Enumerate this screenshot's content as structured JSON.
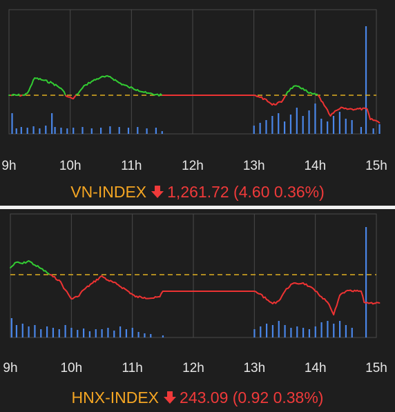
{
  "chart_data": [
    {
      "type": "line",
      "name": "VN-INDEX",
      "x_ticks": [
        "9h",
        "10h",
        "11h",
        "12h",
        "13h",
        "14h",
        "15h"
      ],
      "reference_line": "dashed",
      "price_path": [
        [
          9.0,
          0
        ],
        [
          9.25,
          0
        ],
        [
          9.3,
          -3
        ],
        [
          9.35,
          -12
        ],
        [
          9.42,
          -25
        ],
        [
          9.55,
          -22
        ],
        [
          9.7,
          -18
        ],
        [
          9.85,
          -10
        ],
        [
          9.95,
          2
        ],
        [
          10.05,
          5
        ],
        [
          10.15,
          -5
        ],
        [
          10.25,
          -15
        ],
        [
          10.35,
          -20
        ],
        [
          10.5,
          -26
        ],
        [
          10.65,
          -27
        ],
        [
          10.8,
          -18
        ],
        [
          10.95,
          -12
        ],
        [
          11.1,
          -8
        ],
        [
          11.25,
          -3
        ],
        [
          11.4,
          -1
        ],
        [
          11.5,
          0
        ],
        [
          13.0,
          0
        ],
        [
          13.1,
          3
        ],
        [
          13.2,
          6
        ],
        [
          13.3,
          14
        ],
        [
          13.45,
          10
        ],
        [
          13.55,
          -5
        ],
        [
          13.65,
          -13
        ],
        [
          13.8,
          -10
        ],
        [
          13.9,
          -3
        ],
        [
          14.05,
          0
        ],
        [
          14.15,
          15
        ],
        [
          14.25,
          30
        ],
        [
          14.35,
          22
        ],
        [
          14.45,
          18
        ],
        [
          14.55,
          20
        ],
        [
          14.6,
          20
        ],
        [
          14.85,
          20
        ],
        [
          14.9,
          35
        ],
        [
          15.0,
          37
        ],
        [
          15.05,
          40
        ]
      ],
      "volume": [
        [
          9.05,
          30
        ],
        [
          9.12,
          8
        ],
        [
          9.2,
          10
        ],
        [
          9.3,
          9
        ],
        [
          9.4,
          11
        ],
        [
          9.5,
          8
        ],
        [
          9.6,
          12
        ],
        [
          9.7,
          30
        ],
        [
          9.75,
          10
        ],
        [
          9.85,
          9
        ],
        [
          9.95,
          8
        ],
        [
          10.05,
          9
        ],
        [
          10.2,
          10
        ],
        [
          10.35,
          8
        ],
        [
          10.5,
          9
        ],
        [
          10.65,
          11
        ],
        [
          10.8,
          10
        ],
        [
          10.95,
          9
        ],
        [
          11.1,
          10
        ],
        [
          11.25,
          8
        ],
        [
          11.4,
          9
        ],
        [
          11.5,
          4
        ],
        [
          13.0,
          12
        ],
        [
          13.1,
          16
        ],
        [
          13.2,
          20
        ],
        [
          13.3,
          26
        ],
        [
          13.4,
          30
        ],
        [
          13.5,
          18
        ],
        [
          13.6,
          28
        ],
        [
          13.7,
          38
        ],
        [
          13.8,
          26
        ],
        [
          13.9,
          34
        ],
        [
          14.0,
          44
        ],
        [
          14.1,
          22
        ],
        [
          14.2,
          18
        ],
        [
          14.3,
          26
        ],
        [
          14.4,
          32
        ],
        [
          14.5,
          22
        ],
        [
          14.6,
          20
        ],
        [
          14.75,
          10
        ],
        [
          14.83,
          156
        ],
        [
          14.95,
          8
        ],
        [
          15.05,
          14
        ]
      ],
      "caption": {
        "name": "VN-INDEX",
        "value": "1,261.72 (4.60 0.36%)"
      },
      "colors": {
        "up": "#33cc33",
        "down": "#ee3333",
        "volume": "#4a86e8",
        "reference": "#e0b020"
      }
    },
    {
      "type": "line",
      "name": "HNX-INDEX",
      "x_ticks": [
        "9h",
        "10h",
        "11h",
        "12h",
        "13h",
        "14h",
        "15h"
      ],
      "reference_line": "dashed",
      "price_path": [
        [
          9.0,
          -10
        ],
        [
          9.1,
          -18
        ],
        [
          9.2,
          -16
        ],
        [
          9.3,
          -20
        ],
        [
          9.4,
          -14
        ],
        [
          9.5,
          -9
        ],
        [
          9.6,
          -3
        ],
        [
          9.7,
          3
        ],
        [
          9.8,
          8
        ],
        [
          9.9,
          22
        ],
        [
          10.0,
          35
        ],
        [
          10.1,
          32
        ],
        [
          10.2,
          22
        ],
        [
          10.35,
          12
        ],
        [
          10.5,
          2
        ],
        [
          10.6,
          8
        ],
        [
          10.75,
          14
        ],
        [
          10.9,
          22
        ],
        [
          11.05,
          32
        ],
        [
          11.2,
          33
        ],
        [
          11.35,
          34
        ],
        [
          11.45,
          32
        ],
        [
          11.5,
          24
        ],
        [
          13.0,
          24
        ],
        [
          13.1,
          28
        ],
        [
          13.2,
          36
        ],
        [
          13.3,
          42
        ],
        [
          13.4,
          38
        ],
        [
          13.5,
          24
        ],
        [
          13.6,
          14
        ],
        [
          13.7,
          13
        ],
        [
          13.8,
          12
        ],
        [
          13.9,
          17
        ],
        [
          14.0,
          24
        ],
        [
          14.1,
          32
        ],
        [
          14.2,
          40
        ],
        [
          14.3,
          58
        ],
        [
          14.35,
          45
        ],
        [
          14.4,
          30
        ],
        [
          14.5,
          24
        ],
        [
          14.6,
          24
        ],
        [
          14.75,
          24
        ],
        [
          14.8,
          40
        ],
        [
          14.9,
          41
        ],
        [
          15.05,
          41
        ]
      ],
      "volume": [
        [
          9.02,
          28
        ],
        [
          9.1,
          18
        ],
        [
          9.2,
          20
        ],
        [
          9.3,
          16
        ],
        [
          9.4,
          18
        ],
        [
          9.5,
          12
        ],
        [
          9.6,
          16
        ],
        [
          9.7,
          14
        ],
        [
          9.8,
          12
        ],
        [
          9.9,
          18
        ],
        [
          10.0,
          14
        ],
        [
          10.1,
          11
        ],
        [
          10.2,
          13
        ],
        [
          10.3,
          9
        ],
        [
          10.4,
          12
        ],
        [
          10.5,
          12
        ],
        [
          10.6,
          14
        ],
        [
          10.7,
          10
        ],
        [
          10.8,
          16
        ],
        [
          10.9,
          12
        ],
        [
          11.0,
          14
        ],
        [
          11.1,
          8
        ],
        [
          11.2,
          6
        ],
        [
          11.3,
          5
        ],
        [
          11.5,
          3
        ],
        [
          13.0,
          12
        ],
        [
          13.1,
          16
        ],
        [
          13.2,
          20
        ],
        [
          13.3,
          18
        ],
        [
          13.4,
          24
        ],
        [
          13.5,
          18
        ],
        [
          13.6,
          14
        ],
        [
          13.7,
          16
        ],
        [
          13.8,
          14
        ],
        [
          13.9,
          12
        ],
        [
          14.0,
          16
        ],
        [
          14.1,
          22
        ],
        [
          14.2,
          24
        ],
        [
          14.3,
          20
        ],
        [
          14.4,
          24
        ],
        [
          14.5,
          18
        ],
        [
          14.6,
          14
        ],
        [
          14.83,
          160
        ]
      ],
      "caption": {
        "name": "HNX-INDEX",
        "value": "243.09 (0.92 0.38%)"
      },
      "colors": {
        "up": "#33cc33",
        "down": "#ee3333",
        "volume": "#4a86e8",
        "reference": "#e0b020"
      }
    }
  ]
}
